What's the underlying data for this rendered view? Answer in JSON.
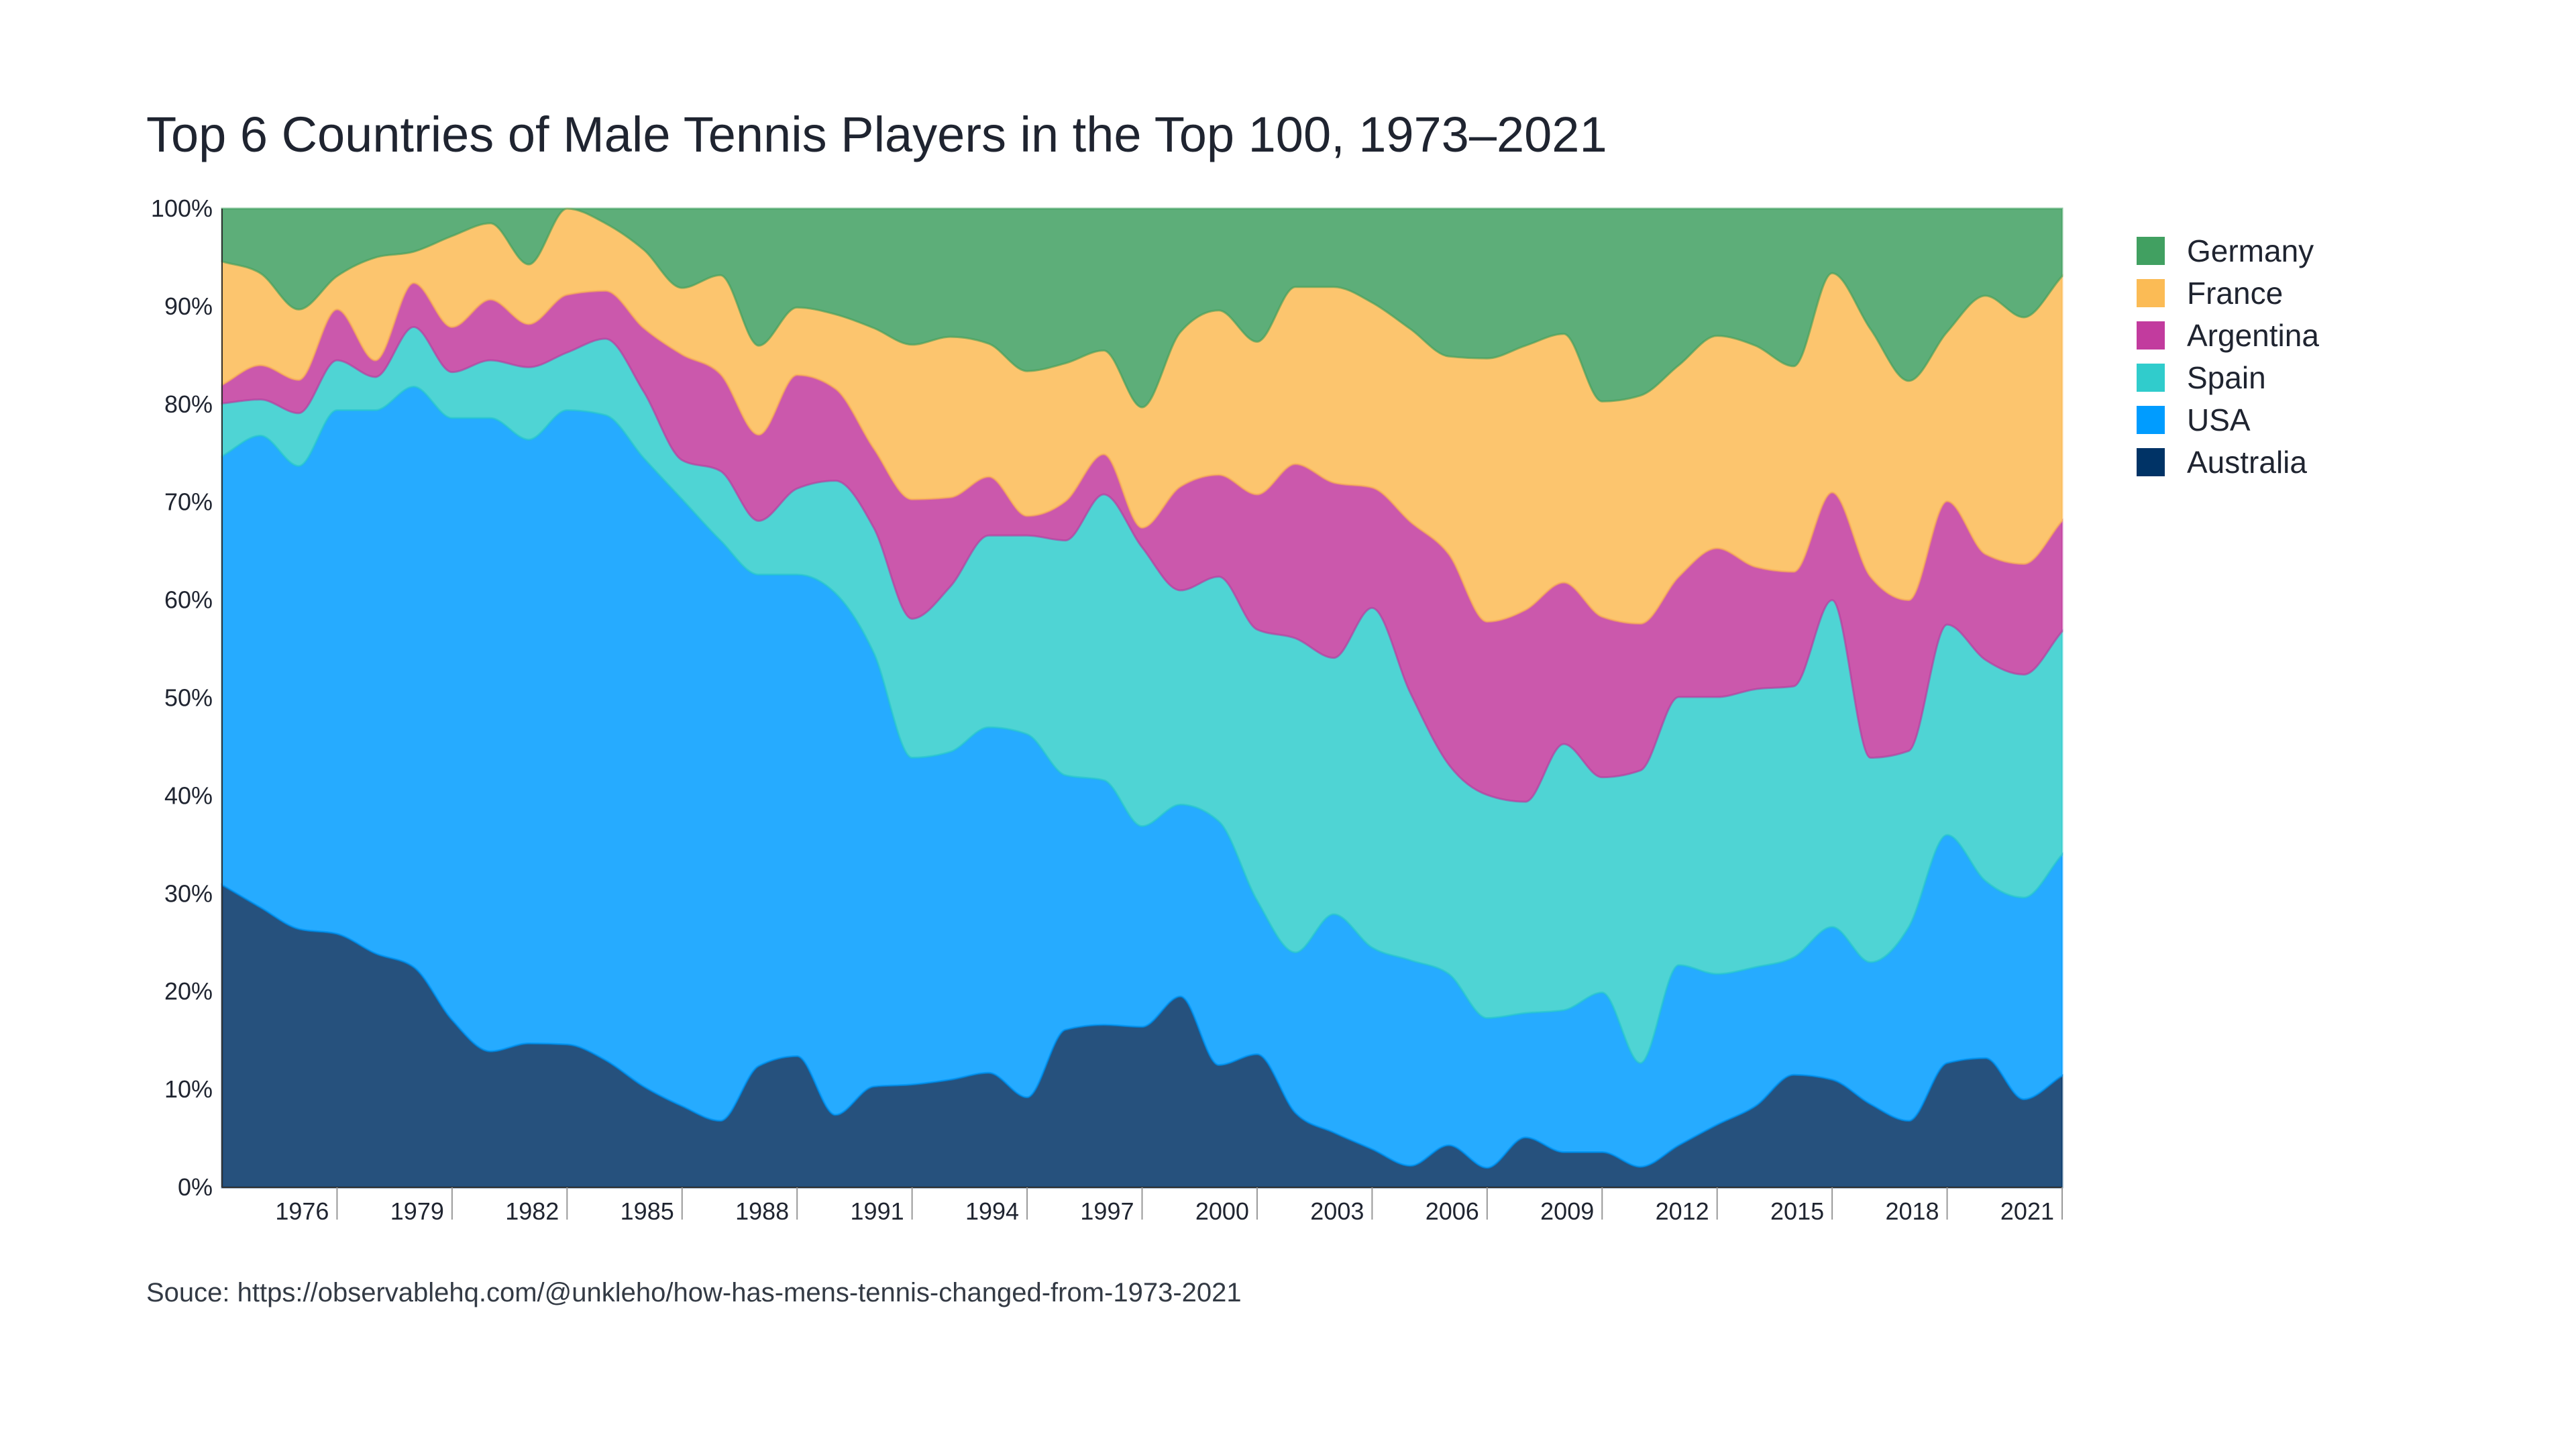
{
  "chart_data": {
    "type": "area",
    "stacked": true,
    "normalized": true,
    "title": "Top 6 Countries of Male Tennis Players in the Top 100, 1973–2021",
    "xlabel": "",
    "ylabel": "",
    "ylim": [
      0,
      100
    ],
    "xlim": [
      1973,
      2021
    ],
    "grid": false,
    "legend_position": "right",
    "y_ticks": [
      "0%",
      "10%",
      "20%",
      "30%",
      "40%",
      "50%",
      "60%",
      "70%",
      "80%",
      "90%",
      "100%"
    ],
    "x_ticks": [
      "1976",
      "1979",
      "1982",
      "1985",
      "1988",
      "1991",
      "1994",
      "1997",
      "2000",
      "2003",
      "2006",
      "2009",
      "2012",
      "2015",
      "2018",
      "2021"
    ],
    "x": [
      1973,
      1974,
      1975,
      1976,
      1977,
      1978,
      1979,
      1980,
      1981,
      1982,
      1983,
      1984,
      1985,
      1986,
      1987,
      1988,
      1989,
      1990,
      1991,
      1992,
      1993,
      1994,
      1995,
      1996,
      1997,
      1998,
      1999,
      2000,
      2001,
      2002,
      2003,
      2004,
      2005,
      2006,
      2007,
      2008,
      2009,
      2010,
      2011,
      2012,
      2013,
      2014,
      2015,
      2016,
      2017,
      2018,
      2019,
      2020,
      2021
    ],
    "series": [
      {
        "name": "Australia",
        "color": "#003366",
        "values": [
          30.9,
          28.6,
          26.4,
          25.9,
          23.9,
          22.5,
          17.1,
          13.9,
          14.7,
          14.6,
          13.0,
          10.3,
          8.3,
          6.8,
          12.4,
          13.4,
          7.4,
          10.3,
          10.5,
          11.0,
          11.7,
          9.2,
          16.1,
          16.6,
          16.4,
          19.5,
          12.5,
          13.6,
          7.6,
          5.6,
          3.9,
          2.2,
          4.3,
          2.0,
          5.1,
          3.6,
          3.6,
          2.1,
          4.3,
          6.4,
          8.3,
          11.5,
          11.0,
          8.5,
          6.8,
          12.7,
          13.2,
          9.0,
          11.4
        ]
      },
      {
        "name": "USA",
        "color": "#009cff",
        "values": [
          43.8,
          48.2,
          47.3,
          53.5,
          55.5,
          59.3,
          61.5,
          64.7,
          61.7,
          64.8,
          65.9,
          64.2,
          62.0,
          59.3,
          50.2,
          49.2,
          53.3,
          44.3,
          33.4,
          33.5,
          35.3,
          37.1,
          26.0,
          25.0,
          20.5,
          19.6,
          24.9,
          15.7,
          16.4,
          22.3,
          20.6,
          21.0,
          17.5,
          15.3,
          12.7,
          14.5,
          16.3,
          10.6,
          18.4,
          15.4,
          14.2,
          12.0,
          15.6,
          14.5,
          19.8,
          23.3,
          18.1,
          20.6,
          22.6
        ]
      },
      {
        "name": "Spain",
        "color": "#30cccc",
        "values": [
          5.4,
          3.7,
          5.4,
          5.1,
          3.4,
          6.1,
          4.7,
          5.9,
          7.4,
          5.9,
          7.8,
          6.8,
          4.0,
          7.1,
          5.5,
          8.8,
          11.5,
          12.8,
          14.2,
          16.9,
          19.6,
          20.3,
          24.0,
          29.2,
          28.5,
          21.9,
          25.0,
          27.7,
          32.1,
          26.2,
          34.7,
          27.3,
          21.4,
          22.8,
          21.6,
          27.2,
          22.0,
          29.9,
          27.4,
          28.3,
          28.4,
          27.7,
          33.4,
          20.9,
          18.0,
          21.5,
          22.6,
          22.8,
          22.8
        ]
      },
      {
        "name": "Argentina",
        "color": "#c23b9e",
        "values": [
          1.9,
          3.5,
          3.4,
          5.2,
          1.7,
          4.5,
          4.6,
          6.2,
          4.4,
          5.9,
          4.9,
          6.5,
          10.8,
          9.9,
          8.8,
          11.6,
          9.4,
          8.1,
          12.2,
          9.1,
          6.0,
          2.0,
          4.0,
          4.1,
          2.0,
          10.6,
          10.4,
          13.8,
          17.8,
          17.9,
          12.3,
          17.5,
          21.5,
          17.7,
          19.6,
          16.5,
          16.4,
          15.0,
          12.3,
          15.2,
          12.5,
          11.7,
          11.0,
          18.5,
          15.4,
          12.6,
          10.8,
          11.3,
          11.3
        ]
      },
      {
        "name": "France",
        "color": "#fbbb55",
        "values": [
          12.6,
          9.4,
          7.2,
          3.4,
          10.5,
          3.2,
          9.3,
          7.8,
          6.1,
          8.8,
          6.9,
          8.0,
          6.8,
          10.1,
          9.1,
          6.9,
          7.6,
          12.3,
          15.8,
          16.4,
          13.6,
          14.8,
          14.1,
          10.6,
          12.3,
          15.8,
          16.8,
          15.6,
          18.1,
          20.0,
          18.9,
          19.7,
          20.2,
          26.9,
          27.0,
          25.4,
          22.0,
          23.3,
          21.6,
          21.7,
          22.6,
          21.0,
          22.4,
          25.3,
          22.4,
          17.3,
          26.4,
          25.2,
          25.0
        ]
      },
      {
        "name": "Germany",
        "color": "#41a061",
        "values": [
          5.4,
          6.6,
          10.3,
          6.9,
          5.0,
          4.4,
          2.8,
          1.5,
          5.7,
          0.0,
          1.5,
          4.2,
          8.1,
          6.8,
          14.0,
          10.1,
          10.8,
          12.2,
          13.9,
          13.1,
          13.8,
          16.6,
          15.8,
          14.5,
          20.3,
          12.6,
          10.4,
          13.6,
          8.0,
          8.0,
          9.6,
          12.3,
          15.1,
          15.3,
          14.0,
          12.8,
          19.7,
          19.1,
          16.0,
          13.0,
          14.0,
          16.1,
          6.6,
          12.3,
          17.6,
          12.6,
          8.9,
          11.1,
          6.9
        ]
      }
    ]
  },
  "legend": {
    "items": [
      {
        "label": "Germany",
        "color": "#41a061"
      },
      {
        "label": "France",
        "color": "#fbbb55"
      },
      {
        "label": "Argentina",
        "color": "#c23b9e"
      },
      {
        "label": "Spain",
        "color": "#30cccc"
      },
      {
        "label": "USA",
        "color": "#009cff"
      },
      {
        "label": "Australia",
        "color": "#003366"
      }
    ]
  },
  "source": "Souce: https://observablehq.com/@unkleho/how-has-mens-tennis-changed-from-1973-2021"
}
